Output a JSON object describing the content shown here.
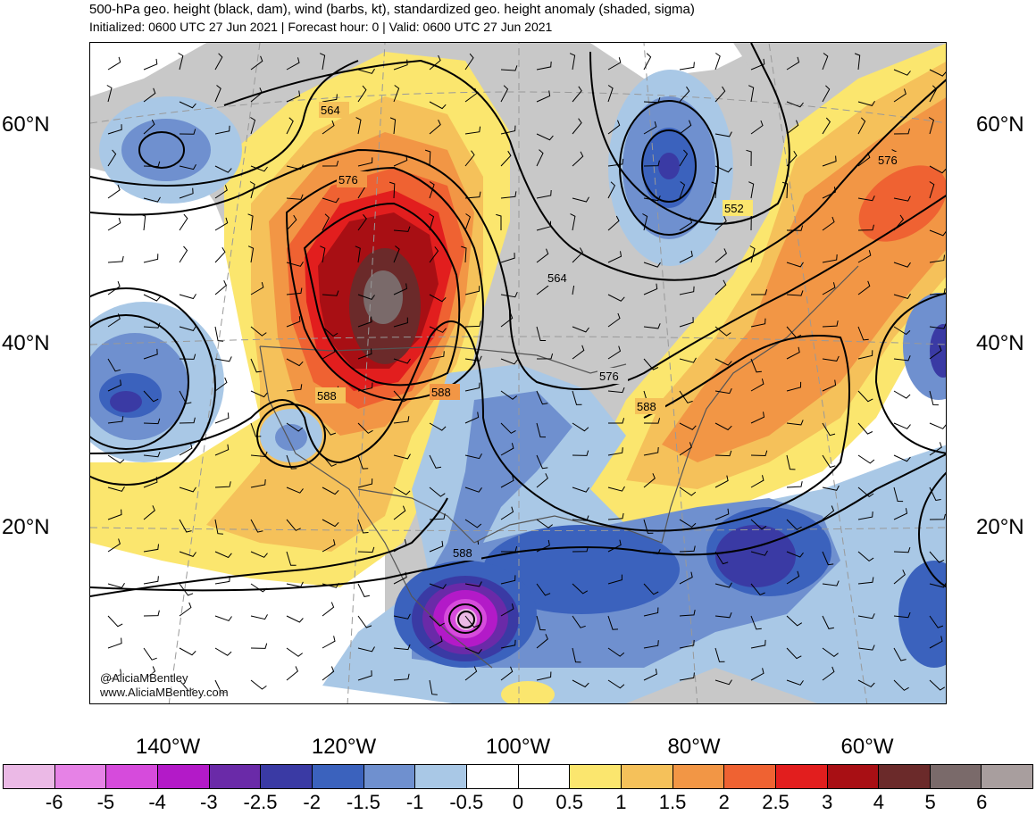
{
  "title": {
    "line1": "500-hPa geo. height (black, dam), wind (barbs, kt), standardized geo. height anomaly (shaded, sigma)",
    "line2": "Initialized: 0600 UTC 27 Jun 2021 | Forecast hour: 0 | Valid: 0600 UTC 27 Jun 2021"
  },
  "lat_labels": [
    "60°N",
    "40°N",
    "20°N"
  ],
  "lon_labels": [
    "140°W",
    "120°W",
    "100°W",
    "80°W",
    "60°W"
  ],
  "contour_labels": [
    "564",
    "576",
    "588",
    "588",
    "564",
    "552",
    "576",
    "588",
    "576",
    "588"
  ],
  "credits": {
    "handle": "@AliciaMBentley",
    "website": "www.AliciaMBentley.com"
  },
  "colorbar": {
    "labels": [
      "-6",
      "-5",
      "-4",
      "-3",
      "-2.5",
      "-2",
      "-1.5",
      "-1",
      "-0.5",
      "0",
      "0.5",
      "1",
      "1.5",
      "2",
      "2.5",
      "3",
      "4",
      "5",
      "6"
    ],
    "colors": [
      "#ebb9e6",
      "#e682e6",
      "#d64bdc",
      "#b31ac8",
      "#6a2aa8",
      "#3a3aa4",
      "#3b62bd",
      "#6f90cf",
      "#a9c8e6",
      "#ffffff",
      "#ffffff",
      "#fbe66e",
      "#f5c15a",
      "#f29645",
      "#ef6232",
      "#e21e1e",
      "#a80f14",
      "#6b2a2a",
      "#7a6a6a",
      "#a89e9e"
    ]
  },
  "colors": {
    "land": "#c8c8c8",
    "contour": "#000000",
    "border": "#555555"
  }
}
